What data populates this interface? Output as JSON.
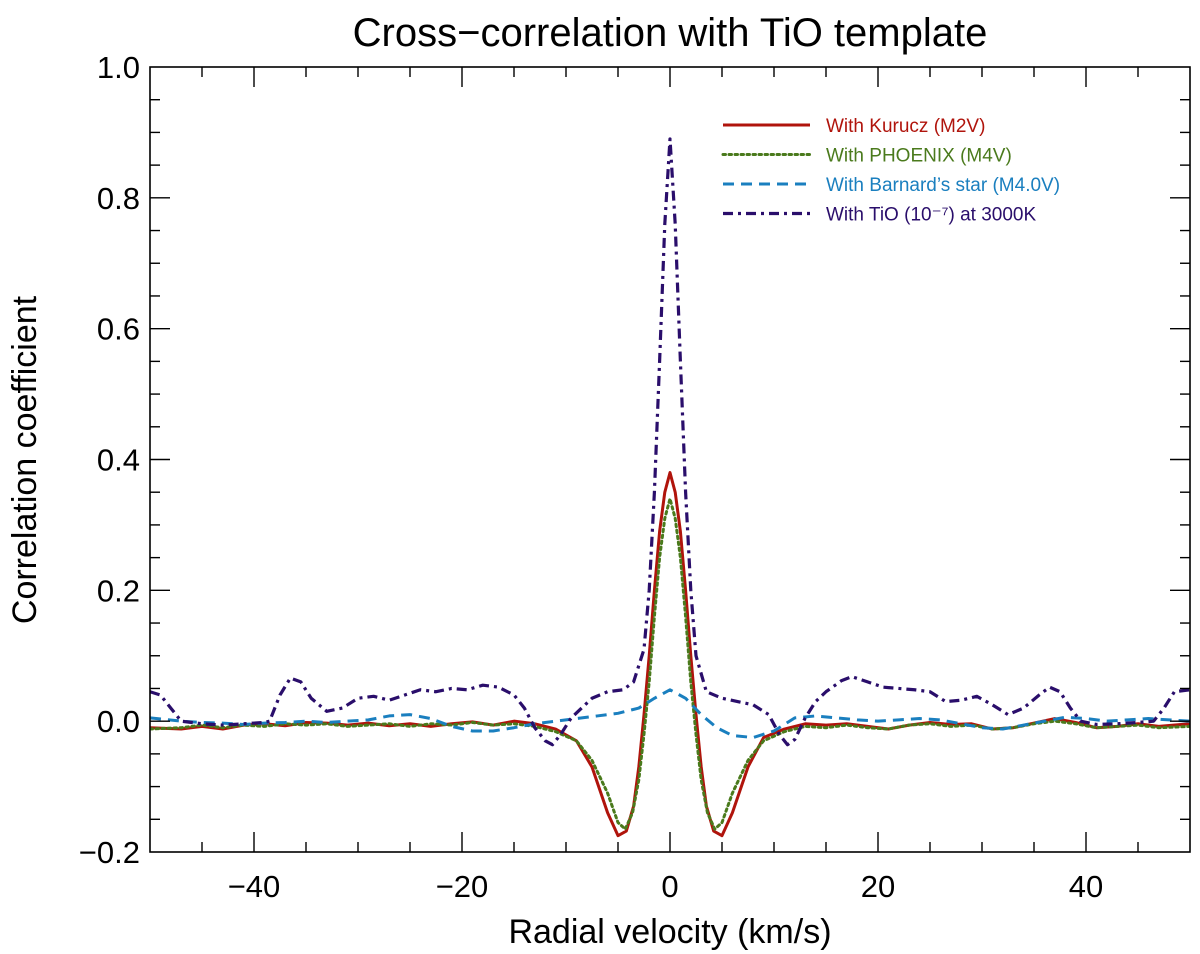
{
  "chart_data": {
    "type": "line",
    "title": "Cross−correlation with TiO template",
    "xlabel": "Radial velocity (km/s)",
    "ylabel": "Correlation coefficient",
    "xlim": [
      -50,
      50
    ],
    "ylim": [
      -0.2,
      1.0
    ],
    "x_major_ticks": [
      -40,
      -20,
      0,
      20,
      40
    ],
    "x_tick_labels": [
      "−40",
      "−20",
      "0",
      "20",
      "40"
    ],
    "y_major_ticks": [
      -0.2,
      0.0,
      0.2,
      0.4,
      0.6,
      0.8,
      1.0
    ],
    "y_tick_labels": [
      "−0.2",
      "0.0",
      "0.2",
      "0.4",
      "0.6",
      "0.8",
      "1.0"
    ],
    "legend_position": "top-right",
    "series": [
      {
        "name": "With Kurucz (M2V)",
        "color": "#b0140c",
        "dash": "solid",
        "points": [
          [
            -50,
            -0.01
          ],
          [
            -47,
            -0.012
          ],
          [
            -45,
            -0.008
          ],
          [
            -43,
            -0.012
          ],
          [
            -41,
            -0.006
          ],
          [
            -39,
            -0.004
          ],
          [
            -37,
            -0.007
          ],
          [
            -35,
            -0.002
          ],
          [
            -33,
            -0.003
          ],
          [
            -31,
            -0.006
          ],
          [
            -29,
            -0.003
          ],
          [
            -27,
            -0.007
          ],
          [
            -25,
            -0.004
          ],
          [
            -23,
            -0.008
          ],
          [
            -21,
            -0.004
          ],
          [
            -19,
            -0.001
          ],
          [
            -17,
            -0.006
          ],
          [
            -15,
            0.0
          ],
          [
            -13,
            -0.004
          ],
          [
            -11,
            -0.012
          ],
          [
            -9,
            -0.03
          ],
          [
            -7.5,
            -0.07
          ],
          [
            -6,
            -0.14
          ],
          [
            -5,
            -0.175
          ],
          [
            -4.2,
            -0.168
          ],
          [
            -3.5,
            -0.13
          ],
          [
            -3,
            -0.07
          ],
          [
            -2.5,
            0.01
          ],
          [
            -2,
            0.1
          ],
          [
            -1.5,
            0.2
          ],
          [
            -1,
            0.29
          ],
          [
            -0.5,
            0.35
          ],
          [
            0,
            0.38
          ],
          [
            0.5,
            0.35
          ],
          [
            1,
            0.29
          ],
          [
            1.5,
            0.2
          ],
          [
            2,
            0.1
          ],
          [
            2.5,
            0.01
          ],
          [
            3,
            -0.07
          ],
          [
            3.5,
            -0.13
          ],
          [
            4.2,
            -0.168
          ],
          [
            5,
            -0.175
          ],
          [
            6,
            -0.14
          ],
          [
            7.5,
            -0.07
          ],
          [
            9,
            -0.025
          ],
          [
            11,
            -0.012
          ],
          [
            13,
            -0.004
          ],
          [
            15,
            -0.006
          ],
          [
            17,
            -0.004
          ],
          [
            19,
            -0.008
          ],
          [
            21,
            -0.012
          ],
          [
            23,
            -0.006
          ],
          [
            25,
            -0.002
          ],
          [
            27,
            -0.005
          ],
          [
            29,
            -0.004
          ],
          [
            31,
            -0.012
          ],
          [
            33,
            -0.01
          ],
          [
            35,
            -0.003
          ],
          [
            37,
            0.004
          ],
          [
            39,
            -0.002
          ],
          [
            41,
            -0.01
          ],
          [
            43,
            -0.008
          ],
          [
            45,
            -0.004
          ],
          [
            47,
            -0.008
          ],
          [
            50,
            -0.004
          ]
        ]
      },
      {
        "name": "With PHOENIX (M4V)",
        "color": "#4a7a1c",
        "dash": "dotted",
        "points": [
          [
            -50,
            -0.012
          ],
          [
            -47,
            -0.01
          ],
          [
            -45,
            -0.006
          ],
          [
            -43,
            -0.01
          ],
          [
            -41,
            -0.006
          ],
          [
            -39,
            -0.008
          ],
          [
            -37,
            -0.004
          ],
          [
            -35,
            -0.006
          ],
          [
            -33,
            -0.004
          ],
          [
            -31,
            -0.008
          ],
          [
            -29,
            -0.006
          ],
          [
            -27,
            -0.004
          ],
          [
            -25,
            -0.008
          ],
          [
            -23,
            -0.004
          ],
          [
            -21,
            -0.006
          ],
          [
            -19,
            -0.002
          ],
          [
            -17,
            -0.006
          ],
          [
            -15,
            -0.004
          ],
          [
            -13,
            -0.008
          ],
          [
            -11,
            -0.016
          ],
          [
            -9,
            -0.03
          ],
          [
            -7.5,
            -0.06
          ],
          [
            -6,
            -0.11
          ],
          [
            -5,
            -0.155
          ],
          [
            -4.3,
            -0.165
          ],
          [
            -3.6,
            -0.14
          ],
          [
            -3,
            -0.09
          ],
          [
            -2.5,
            -0.02
          ],
          [
            -2,
            0.06
          ],
          [
            -1.5,
            0.16
          ],
          [
            -1,
            0.25
          ],
          [
            -0.5,
            0.31
          ],
          [
            0,
            0.34
          ],
          [
            0.5,
            0.31
          ],
          [
            1,
            0.25
          ],
          [
            1.5,
            0.16
          ],
          [
            2,
            0.06
          ],
          [
            2.5,
            -0.02
          ],
          [
            3,
            -0.09
          ],
          [
            3.6,
            -0.14
          ],
          [
            4.3,
            -0.165
          ],
          [
            5,
            -0.155
          ],
          [
            6,
            -0.11
          ],
          [
            7.5,
            -0.06
          ],
          [
            9,
            -0.03
          ],
          [
            11,
            -0.016
          ],
          [
            13,
            -0.008
          ],
          [
            15,
            -0.01
          ],
          [
            17,
            -0.006
          ],
          [
            19,
            -0.01
          ],
          [
            21,
            -0.012
          ],
          [
            23,
            -0.006
          ],
          [
            25,
            -0.004
          ],
          [
            27,
            -0.008
          ],
          [
            29,
            -0.006
          ],
          [
            31,
            -0.012
          ],
          [
            33,
            -0.01
          ],
          [
            35,
            -0.004
          ],
          [
            37,
            0.0
          ],
          [
            39,
            -0.004
          ],
          [
            41,
            -0.01
          ],
          [
            43,
            -0.008
          ],
          [
            45,
            -0.006
          ],
          [
            47,
            -0.01
          ],
          [
            50,
            -0.008
          ]
        ]
      },
      {
        "name": "With Barnard’s star (M4.0V)",
        "color": "#1a7fbf",
        "dash": "dashed",
        "points": [
          [
            -50,
            0.005
          ],
          [
            -47,
            0.0
          ],
          [
            -45,
            -0.002
          ],
          [
            -43,
            -0.003
          ],
          [
            -41,
            -0.005
          ],
          [
            -39,
            -0.003
          ],
          [
            -37,
            -0.002
          ],
          [
            -35,
            0.0
          ],
          [
            -33,
            -0.002
          ],
          [
            -31,
            0.0
          ],
          [
            -29,
            0.002
          ],
          [
            -27,
            0.008
          ],
          [
            -25,
            0.01
          ],
          [
            -23,
            0.004
          ],
          [
            -21,
            -0.008
          ],
          [
            -19,
            -0.015
          ],
          [
            -17,
            -0.015
          ],
          [
            -15,
            -0.01
          ],
          [
            -13,
            -0.004
          ],
          [
            -11,
            0.0
          ],
          [
            -9,
            0.004
          ],
          [
            -7,
            0.008
          ],
          [
            -5,
            0.012
          ],
          [
            -3,
            0.02
          ],
          [
            -1.5,
            0.035
          ],
          [
            0,
            0.048
          ],
          [
            1.5,
            0.035
          ],
          [
            3,
            0.01
          ],
          [
            4.5,
            -0.01
          ],
          [
            6,
            -0.022
          ],
          [
            8,
            -0.025
          ],
          [
            10,
            -0.015
          ],
          [
            12,
            0.005
          ],
          [
            14,
            0.008
          ],
          [
            16,
            0.005
          ],
          [
            18,
            0.002
          ],
          [
            20,
            0.0
          ],
          [
            22,
            0.002
          ],
          [
            24,
            0.004
          ],
          [
            26,
            0.002
          ],
          [
            28,
            -0.004
          ],
          [
            30,
            -0.01
          ],
          [
            32,
            -0.012
          ],
          [
            34,
            -0.006
          ],
          [
            36,
            0.0
          ],
          [
            38,
            0.006
          ],
          [
            40,
            0.004
          ],
          [
            42,
            0.0
          ],
          [
            44,
            0.002
          ],
          [
            46,
            0.004
          ],
          [
            48,
            0.002
          ],
          [
            50,
            0.0
          ]
        ]
      },
      {
        "name": "With TiO (10⁻⁷) at 3000K",
        "color": "#2a0e6b",
        "dash": "dashdot",
        "points": [
          [
            -50,
            0.045
          ],
          [
            -49,
            0.04
          ],
          [
            -48,
            0.02
          ],
          [
            -47,
            0.0
          ],
          [
            -45,
            -0.004
          ],
          [
            -43,
            -0.006
          ],
          [
            -41,
            -0.004
          ],
          [
            -39,
            -0.002
          ],
          [
            -38.5,
            0.0
          ],
          [
            -37.5,
            0.04
          ],
          [
            -36.5,
            0.066
          ],
          [
            -35.5,
            0.06
          ],
          [
            -34.5,
            0.035
          ],
          [
            -33,
            0.015
          ],
          [
            -31.5,
            0.02
          ],
          [
            -30,
            0.035
          ],
          [
            -28.5,
            0.038
          ],
          [
            -27,
            0.032
          ],
          [
            -25.5,
            0.04
          ],
          [
            -24,
            0.048
          ],
          [
            -22.5,
            0.045
          ],
          [
            -21,
            0.05
          ],
          [
            -19.5,
            0.048
          ],
          [
            -18,
            0.055
          ],
          [
            -16.5,
            0.052
          ],
          [
            -15,
            0.04
          ],
          [
            -14,
            0.02
          ],
          [
            -13,
            -0.01
          ],
          [
            -12,
            -0.03
          ],
          [
            -11.3,
            -0.036
          ],
          [
            -10.5,
            -0.02
          ],
          [
            -9.5,
            0.005
          ],
          [
            -8.5,
            0.02
          ],
          [
            -7.5,
            0.035
          ],
          [
            -6,
            0.045
          ],
          [
            -4.5,
            0.048
          ],
          [
            -3.5,
            0.06
          ],
          [
            -2.5,
            0.11
          ],
          [
            -2,
            0.2
          ],
          [
            -1.5,
            0.35
          ],
          [
            -1,
            0.55
          ],
          [
            -0.5,
            0.76
          ],
          [
            0,
            0.89
          ],
          [
            0.5,
            0.76
          ],
          [
            1,
            0.55
          ],
          [
            1.5,
            0.35
          ],
          [
            2,
            0.2
          ],
          [
            2.5,
            0.1
          ],
          [
            3.5,
            0.045
          ],
          [
            5,
            0.035
          ],
          [
            6.5,
            0.03
          ],
          [
            8,
            0.025
          ],
          [
            9.5,
            0.01
          ],
          [
            10.5,
            -0.02
          ],
          [
            11.3,
            -0.036
          ],
          [
            12,
            -0.028
          ],
          [
            13,
            0.005
          ],
          [
            14,
            0.03
          ],
          [
            15,
            0.045
          ],
          [
            16.5,
            0.062
          ],
          [
            17.5,
            0.068
          ],
          [
            19,
            0.06
          ],
          [
            20.5,
            0.052
          ],
          [
            22,
            0.05
          ],
          [
            23.5,
            0.048
          ],
          [
            25,
            0.045
          ],
          [
            26.5,
            0.03
          ],
          [
            28,
            0.032
          ],
          [
            29.5,
            0.038
          ],
          [
            31,
            0.025
          ],
          [
            32.5,
            0.01
          ],
          [
            34,
            0.02
          ],
          [
            35.5,
            0.04
          ],
          [
            36.5,
            0.052
          ],
          [
            37.5,
            0.045
          ],
          [
            38.5,
            0.02
          ],
          [
            39.5,
            0.0
          ],
          [
            41,
            -0.005
          ],
          [
            43,
            -0.004
          ],
          [
            45,
            -0.002
          ],
          [
            46.5,
            0.0
          ],
          [
            47.5,
            0.02
          ],
          [
            48.5,
            0.045
          ],
          [
            50,
            0.048
          ]
        ]
      }
    ]
  }
}
